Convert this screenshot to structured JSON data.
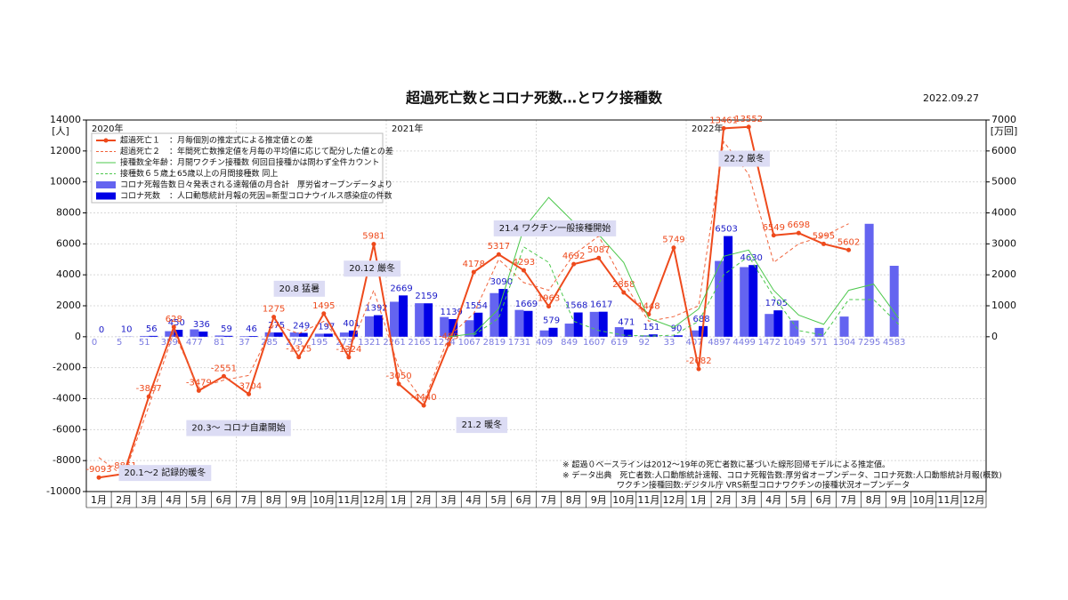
{
  "chart_data": {
    "type": "combo",
    "title": "超過死亡数とコロナ死数…とワク接種数",
    "date": "2022.09.27",
    "ylabel": "[人]",
    "y2label": "[万回]",
    "years": [
      "2020年",
      "2021年",
      "2022年"
    ],
    "categories": [
      "1月",
      "2月",
      "3月",
      "4月",
      "5月",
      "6月",
      "7月",
      "8月",
      "9月",
      "10月",
      "11月",
      "12月",
      "1月",
      "2月",
      "3月",
      "4月",
      "5月",
      "6月",
      "7月",
      "8月",
      "9月",
      "10月",
      "11月",
      "12月",
      "1月",
      "2月",
      "3月",
      "4月",
      "5月",
      "6月",
      "7月",
      "8月",
      "9月",
      "10月",
      "11月",
      "12月"
    ],
    "ylim": [
      -10000,
      14000
    ],
    "yticks": [
      -10000,
      -8000,
      -6000,
      -4000,
      -2000,
      0,
      2000,
      4000,
      6000,
      8000,
      10000,
      12000,
      14000
    ],
    "y2lim": [
      -5000,
      7000
    ],
    "y2ticks": [
      0,
      1000,
      2000,
      3000,
      4000,
      5000,
      6000,
      7000
    ],
    "grid": true,
    "series": [
      {
        "name": "超過死亡１",
        "description": "：月毎個別の推定式による推定値との差",
        "kind": "line",
        "dash": false,
        "markers": true,
        "labels": true,
        "color": "#ee4a1c",
        "values": [
          -9093,
          -8861,
          -3867,
          628,
          -3479,
          -2551,
          -3704,
          1275,
          -1315,
          1495,
          -1324,
          5981,
          -3050,
          -4440,
          -489,
          4178,
          5317,
          4293,
          1963,
          4692,
          5087,
          2858,
          1448,
          5749,
          -2082,
          13461,
          13552,
          6549,
          6698,
          5995,
          5602,
          null,
          null,
          null,
          null,
          null
        ]
      },
      {
        "name": "超過死亡２",
        "description": "：年間死亡数推定値を月毎の平均値に応じて配分した値との差",
        "kind": "line",
        "dash": true,
        "markers": false,
        "labels": false,
        "color": "#f0643c",
        "values": [
          -7800,
          -9000,
          -4500,
          300,
          -3300,
          -2800,
          -2500,
          800,
          200,
          1000,
          -1000,
          3000,
          -2000,
          -4200,
          0,
          1500,
          5000,
          3500,
          3000,
          5300,
          6500,
          3500,
          1000,
          1300,
          2000,
          12600,
          10500,
          4800,
          6000,
          6500,
          7300,
          null,
          null,
          null,
          null,
          null
        ]
      },
      {
        "name": "接種数全年齢",
        "description": "：月間ワクチン接種数 何回目接種かは問わず全件カウント",
        "kind": "line",
        "axis": "y2",
        "dash": false,
        "markers": false,
        "labels": false,
        "color": "#4cc84c",
        "values": [
          null,
          null,
          null,
          null,
          null,
          null,
          null,
          null,
          null,
          null,
          null,
          null,
          null,
          null,
          0,
          100,
          900,
          3500,
          4500,
          3700,
          3300,
          2400,
          600,
          300,
          900,
          2600,
          2800,
          1500,
          700,
          400,
          1500,
          1700,
          600,
          null,
          null,
          null
        ]
      },
      {
        "name": "接種数６５歳上",
        "description": "：65歳以上の月間接種数 同上",
        "kind": "line",
        "axis": "y2",
        "dash": true,
        "markers": false,
        "labels": false,
        "color": "#4cc84c",
        "values": [
          null,
          null,
          null,
          null,
          null,
          null,
          null,
          null,
          null,
          null,
          null,
          null,
          null,
          null,
          null,
          50,
          600,
          2900,
          2400,
          500,
          200,
          50,
          20,
          50,
          500,
          2000,
          2600,
          1300,
          200,
          50,
          1200,
          1200,
          400,
          null,
          null,
          null
        ]
      },
      {
        "name": "コロナ死報告数",
        "description": "：日々発表される速報値の月合計　厚労省オープンデータより",
        "kind": "bar",
        "labels": true,
        "color": "#6464f0",
        "label_color": "#7a7ae0",
        "values": [
          0,
          5,
          51,
          359,
          477,
          81,
          37,
          285,
          275,
          195,
          273,
          1321,
          2261,
          2165,
          1274,
          1067,
          2819,
          1731,
          409,
          849,
          1607,
          619,
          92,
          33,
          407,
          4897,
          4499,
          1472,
          1049,
          571,
          1304,
          7295,
          4583,
          null,
          null,
          null
        ]
      },
      {
        "name": "コロナ死数",
        "description": "：人口動態統計月報の死因=新型コロナウイルス感染症の件数",
        "kind": "bar",
        "labels": true,
        "color": "#0000e6",
        "label_color": "#1a1ac8",
        "values": [
          0,
          10,
          56,
          450,
          336,
          59,
          46,
          275,
          249,
          197,
          401,
          1392,
          2669,
          2159,
          1139,
          1554,
          3090,
          1669,
          579,
          1568,
          1617,
          471,
          151,
          90,
          688,
          6503,
          4630,
          1705,
          null,
          null,
          null,
          null,
          null,
          null,
          null,
          null
        ]
      }
    ],
    "annotations": [
      "20.1～2 記録的暖冬",
      "20.3～ コロナ自粛開始",
      "20.8 猛暑",
      "20.12 厳冬",
      "21.2 暖冬",
      "21.4 ワクチン一般接種開始",
      "22.2 厳冬"
    ],
    "notes": [
      "※ 超過０ベースラインは2012～19年の死亡者数に基づいた線形回帰モデルによる推定値。",
      "※ データ出典　死亡者数:人口動態統計速報、コロナ死報告数:厚労省オープンデータ、コロナ死数:人口動態統計月報(概数)",
      "ワクチン接種回数:デジタル庁 VRS新型コロナワクチンの接種状況オープンデータ"
    ]
  }
}
